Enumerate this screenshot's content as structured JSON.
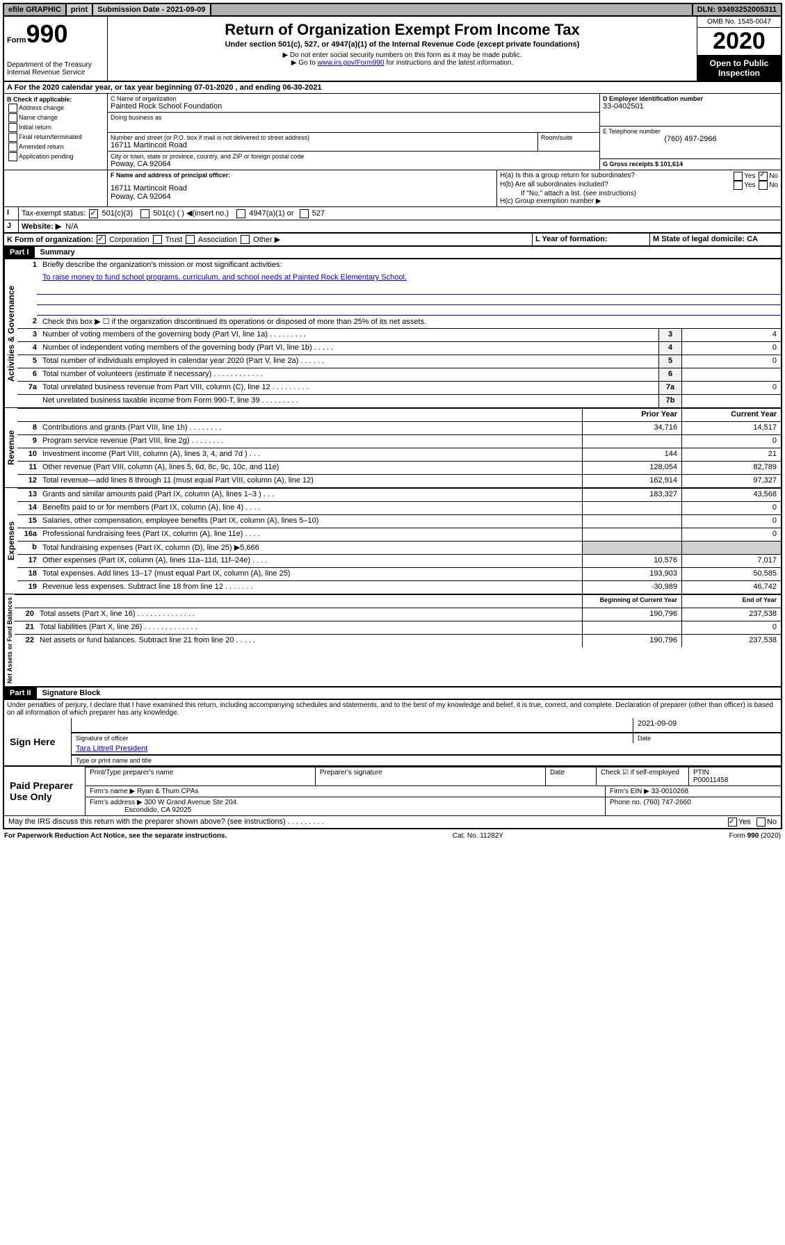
{
  "topbar": {
    "efile": "efile GRAPHIC",
    "print": "print",
    "submission_label": "Submission Date - 2021-09-09",
    "dln_label": "DLN: 93493252005311"
  },
  "form": {
    "form_label": "Form",
    "form_number": "990",
    "dept": "Department of the Treasury\nInternal Revenue Service",
    "title": "Return of Organization Exempt From Income Tax",
    "subtitle": "Under section 501(c), 527, or 4947(a)(1) of the Internal Revenue Code (except private foundations)",
    "note1": "▶ Do not enter social security numbers on this form as it may be made public.",
    "note2_pre": "▶ Go to ",
    "note2_link": "www.irs.gov/Form990",
    "note2_post": " for instructions and the latest information.",
    "omb": "OMB No. 1545-0047",
    "year": "2020",
    "open": "Open to Public Inspection"
  },
  "period": {
    "line": "A For the 2020 calendar year, or tax year beginning 07-01-2020    , and ending 06-30-2021"
  },
  "sectionB": {
    "header": "B Check if applicable:",
    "items": [
      "Address change",
      "Name change",
      "Initial return",
      "Final return/terminated",
      "Amended return",
      "Application pending"
    ]
  },
  "sectionC": {
    "name_label": "C Name of organization",
    "name": "Painted Rock School Foundation",
    "dba_label": "Doing business as",
    "addr_label": "Number and street (or P.O. box if mail is not delivered to street address)",
    "room_label": "Room/suite",
    "addr": "16711 Martincoit Road",
    "city_label": "City or town, state or province, country, and ZIP or foreign postal code",
    "city": "Poway, CA  92064"
  },
  "sectionD": {
    "label": "D Employer identification number",
    "value": "33-0402501"
  },
  "sectionE": {
    "label": "E Telephone number",
    "value": "(760) 497-2966"
  },
  "sectionF": {
    "label": "F Name and address of principal officer:",
    "addr1": "16711 Martincoit Road",
    "addr2": "Poway, CA  92064"
  },
  "sectionG": {
    "label": "G Gross receipts $ 101,614"
  },
  "sectionH": {
    "a": "H(a)  Is this a group return for subordinates?",
    "b": "H(b)  Are all subordinates included?",
    "bnote": "If \"No,\" attach a list. (see instructions)",
    "c": "H(c)  Group exemption number ▶",
    "yes": "Yes",
    "no": "No"
  },
  "sectionI": {
    "label": "Tax-exempt status:",
    "opts": [
      "501(c)(3)",
      "501(c) (   ) ◀(insert no.)",
      "4947(a)(1) or",
      "527"
    ]
  },
  "sectionJ": {
    "label": "Website: ▶",
    "value": "N/A"
  },
  "sectionK": {
    "label": "K Form of organization:",
    "opts": [
      "Corporation",
      "Trust",
      "Association",
      "Other ▶"
    ]
  },
  "sectionL": {
    "label": "L Year of formation:"
  },
  "sectionM": {
    "label": "M State of legal domicile: CA"
  },
  "part1": {
    "header": "Part I",
    "title": "Summary",
    "side1": "Activities & Governance",
    "side2": "Revenue",
    "side3": "Expenses",
    "side4": "Net Assets or Fund Balances",
    "l1": "Briefly describe the organization's mission or most significant activities:",
    "l1_text": "To raise money to fund school programs, curriculum, and school needs at Painted Rock Elementary School.",
    "l2": "Check this box ▶ ☐  if the organization discontinued its operations or disposed of more than 25% of its net assets.",
    "lines_gov": [
      {
        "n": "3",
        "d": "Number of voting members of the governing body (Part VI, line 1a)  .    .    .    .    .    .    .    .    .",
        "b": "3",
        "v": "4"
      },
      {
        "n": "4",
        "d": "Number of independent voting members of the governing body (Part VI, line 1b)    .    .    .    .    .",
        "b": "4",
        "v": "0"
      },
      {
        "n": "5",
        "d": "Total number of individuals employed in calendar year 2020 (Part V, line 2a)    .    .    .    .    .    .",
        "b": "5",
        "v": "0"
      },
      {
        "n": "6",
        "d": "Total number of volunteers (estimate if necessary)    .    .    .    .    .    .    .    .    .    .    .    .",
        "b": "6",
        "v": ""
      },
      {
        "n": "7a",
        "d": "Total unrelated business revenue from Part VIII, column (C), line 12  .    .    .    .    .    .    .    .    .",
        "b": "7a",
        "v": "0"
      },
      {
        "n": "",
        "d": "Net unrelated business taxable income from Form 990-T, line 39    .    .    .    .    .    .    .    .    .",
        "b": "7b",
        "v": ""
      }
    ],
    "col_prior": "Prior Year",
    "col_current": "Current Year",
    "lines_rev": [
      {
        "n": "8",
        "d": "Contributions and grants (Part VIII, line 1h)    .    .    .    .    .    .    .    .",
        "p": "34,716",
        "c": "14,517"
      },
      {
        "n": "9",
        "d": "Program service revenue (Part VIII, line 2g)    .    .    .    .    .    .    .    .",
        "p": "",
        "c": "0"
      },
      {
        "n": "10",
        "d": "Investment income (Part VIII, column (A), lines 3, 4, and 7d )    .    .    .",
        "p": "144",
        "c": "21"
      },
      {
        "n": "11",
        "d": "Other revenue (Part VIII, column (A), lines 5, 6d, 8c, 9c, 10c, and 11e)",
        "p": "128,054",
        "c": "82,789"
      },
      {
        "n": "12",
        "d": "Total revenue—add lines 8 through 11 (must equal Part VIII, column (A), line 12)",
        "p": "162,914",
        "c": "97,327"
      }
    ],
    "lines_exp": [
      {
        "n": "13",
        "d": "Grants and similar amounts paid (Part IX, column (A), lines 1–3 )    .    .    .",
        "p": "183,327",
        "c": "43,568"
      },
      {
        "n": "14",
        "d": "Benefits paid to or for members (Part IX, column (A), line 4)    .    .    .    .",
        "p": "",
        "c": "0"
      },
      {
        "n": "15",
        "d": "Salaries, other compensation, employee benefits (Part IX, column (A), lines 5–10)",
        "p": "",
        "c": "0"
      },
      {
        "n": "16a",
        "d": "Professional fundraising fees (Part IX, column (A), line 11e)    .    .    .    .",
        "p": "",
        "c": "0"
      },
      {
        "n": "b",
        "d": "Total fundraising expenses (Part IX, column (D), line 25) ▶5,666",
        "p": "shade",
        "c": "shade"
      },
      {
        "n": "17",
        "d": "Other expenses (Part IX, column (A), lines 11a–11d, 11f–24e)   .    .    .    .",
        "p": "10,576",
        "c": "7,017"
      },
      {
        "n": "18",
        "d": "Total expenses. Add lines 13–17 (must equal Part IX, column (A), line 25)",
        "p": "193,903",
        "c": "50,585"
      },
      {
        "n": "19",
        "d": "Revenue less expenses. Subtract line 18 from line 12   .    .    .    .    .    .    .",
        "p": "-30,989",
        "c": "46,742"
      }
    ],
    "col_begin": "Beginning of Current Year",
    "col_end": "End of Year",
    "lines_net": [
      {
        "n": "20",
        "d": "Total assets (Part X, line 16)    .    .    .    .    .    .    .    .    .    .    .    .    .    .",
        "p": "190,796",
        "c": "237,538"
      },
      {
        "n": "21",
        "d": "Total liabilities (Part X, line 26)    .    .    .    .    .    .    .    .    .    .    .    .    .",
        "p": "",
        "c": "0"
      },
      {
        "n": "22",
        "d": "Net assets or fund balances. Subtract line 21 from line 20   .    .    .    .    .",
        "p": "190,796",
        "c": "237,538"
      }
    ]
  },
  "part2": {
    "header": "Part II",
    "title": "Signature Block",
    "penalty": "Under penalties of perjury, I declare that I have examined this return, including accompanying schedules and statements, and to the best of my knowledge and belief, it is true, correct, and complete. Declaration of preparer (other than officer) is based on all information of which preparer has any knowledge.",
    "sign_here": "Sign Here",
    "sig_officer": "Signature of officer",
    "date_label": "Date",
    "date": "2021-09-09",
    "officer_name": "Tara Littrell  President",
    "type_name": "Type or print name and title",
    "paid": "Paid Preparer Use Only",
    "prep_name_label": "Print/Type preparer's name",
    "prep_sig_label": "Preparer's signature",
    "check_self": "Check ☑ if self-employed",
    "ptin_label": "PTIN",
    "ptin": "P00011458",
    "firm_name_label": "Firm's name    ▶",
    "firm_name": "Ryan & Thum CPAs",
    "firm_ein_label": "Firm's EIN ▶",
    "firm_ein": "33-0010268",
    "firm_addr_label": "Firm's address ▶",
    "firm_addr1": "300 W Grand Avenue Ste 204",
    "firm_addr2": "Escondido, CA  92025",
    "phone_label": "Phone no.",
    "phone": "(760) 747-2660",
    "discuss": "May the IRS discuss this return with the preparer shown above? (see instructions)    .    .    .    .    .    .    .    .    .",
    "yes": "Yes",
    "no": "No"
  },
  "footer": {
    "left": "For Paperwork Reduction Act Notice, see the separate instructions.",
    "mid": "Cat. No. 11282Y",
    "right": "Form 990 (2020)"
  }
}
